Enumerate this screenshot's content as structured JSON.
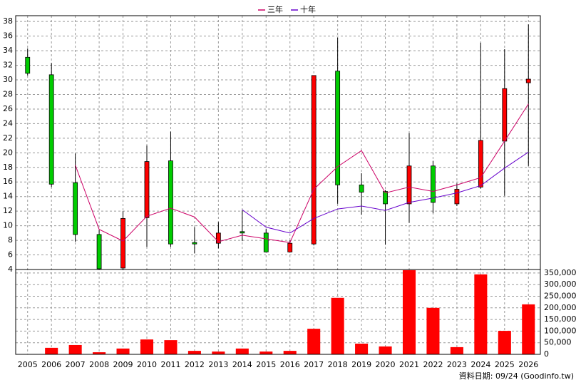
{
  "chart_data": {
    "type": "candlestick",
    "categories": [
      "2005",
      "2006",
      "2007",
      "2008",
      "2009",
      "2010",
      "2011",
      "2012",
      "2013",
      "2014",
      "2015",
      "2016",
      "2017",
      "2018",
      "2019",
      "2020",
      "2021",
      "2022",
      "2023",
      "2024",
      "2025",
      "2026"
    ],
    "open": [
      33.1,
      30.7,
      15.9,
      8.8,
      4.2,
      11.1,
      18.9,
      7.7,
      7.6,
      9.2,
      9.0,
      6.4,
      7.5,
      31.2,
      15.6,
      14.7,
      13.0,
      18.2,
      13.0,
      15.3,
      21.6,
      29.6
    ],
    "high": [
      34.3,
      32.3,
      19.9,
      9.4,
      12.0,
      21.0,
      22.9,
      9.8,
      10.5,
      12.1,
      9.6,
      8.0,
      30.6,
      35.8,
      17.2,
      14.9,
      22.7,
      18.9,
      15.8,
      35.1,
      34.2,
      37.6
    ],
    "low": [
      30.6,
      15.3,
      7.8,
      4.0,
      3.9,
      7.1,
      7.1,
      6.2,
      6.9,
      7.9,
      6.4,
      6.4,
      7.3,
      13.0,
      11.5,
      7.4,
      10.4,
      11.7,
      12.7,
      15.1,
      14.1,
      18.2
    ],
    "close": [
      30.9,
      15.7,
      8.8,
      4.1,
      11.0,
      18.8,
      7.5,
      7.5,
      9.0,
      9.0,
      6.4,
      7.6,
      30.6,
      15.6,
      14.6,
      13.0,
      18.2,
      13.2,
      15.0,
      21.7,
      28.8,
      30.1
    ],
    "up_color": "#ff0000",
    "down_color": "#00cc00",
    "series": [
      {
        "name": "三年",
        "color": "#cc0066",
        "values": [
          null,
          null,
          18.3,
          9.5,
          7.9,
          11.3,
          12.4,
          11.2,
          7.8,
          8.7,
          8.2,
          7.7,
          15.0,
          18.1,
          20.3,
          14.5,
          15.3,
          14.7,
          15.6,
          16.6,
          21.6,
          26.7
        ]
      },
      {
        "name": "十年",
        "color": "#6600cc",
        "values": [
          null,
          null,
          null,
          null,
          null,
          null,
          null,
          null,
          null,
          12.2,
          9.8,
          9.0,
          11.0,
          12.3,
          12.7,
          12.1,
          13.2,
          13.8,
          14.5,
          15.5,
          17.9,
          20.1
        ]
      }
    ],
    "ylim": [
      4,
      38.8
    ],
    "yticks": [
      4,
      6,
      8,
      10,
      12,
      14,
      16,
      18,
      20,
      22,
      24,
      26,
      28,
      30,
      32,
      34,
      36,
      38
    ],
    "volume": {
      "type": "bar",
      "color": "#ff0000",
      "values": [
        1000,
        28000,
        40000,
        9000,
        25000,
        64000,
        61000,
        15000,
        12000,
        25000,
        12000,
        15000,
        110000,
        243000,
        46000,
        34000,
        362000,
        200000,
        31000,
        344000,
        101000,
        215000
      ],
      "ylim": [
        0,
        365000
      ],
      "yticks": [
        0,
        {
          "value": 50000,
          "label": "50,000"
        },
        {
          "value": 100000,
          "label": "100,000"
        },
        {
          "value": 150000,
          "label": "150,000"
        },
        {
          "value": 200000,
          "label": "200,000"
        },
        {
          "value": 250000,
          "label": "250,000"
        },
        {
          "value": 300000,
          "label": "300,000"
        },
        {
          "value": 350000,
          "label": "350,000"
        }
      ]
    },
    "grid": true,
    "legend": "top",
    "source_note": "資料日期: 09/24 (Goodinfo.tw)"
  }
}
